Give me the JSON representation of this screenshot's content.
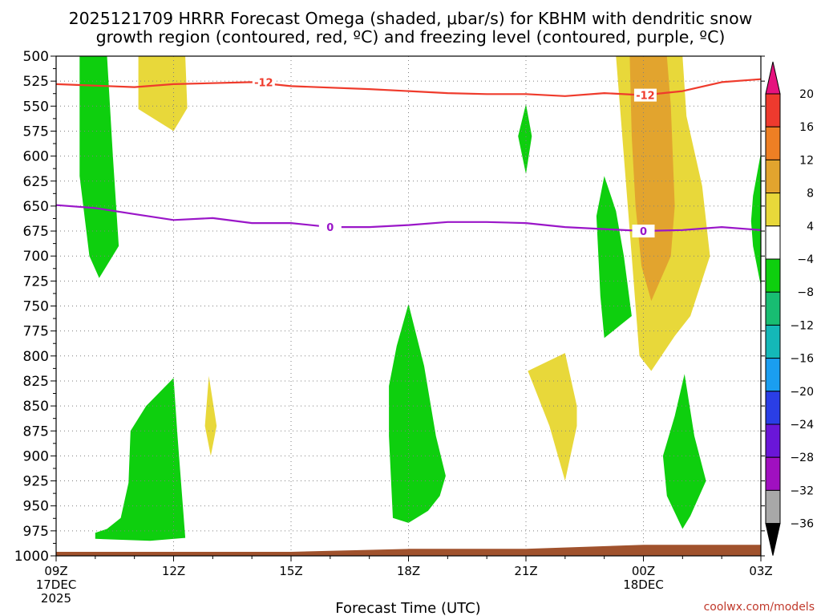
{
  "chart_data": {
    "type": "heatmap",
    "title_line1": "2025121709 HRRR Forecast Omega (shaded, μbar/s) for KBHM with dendritic snow",
    "title_line2": "growth region (contoured, red, ºC) and freezing level (contoured, purple, ºC)",
    "xlabel": "Forecast Time (UTC)",
    "credit": "coolwx.com/models",
    "x_range_hours": [
      0,
      18
    ],
    "y_range_hpa": [
      500,
      1000
    ],
    "x_ticks": [
      {
        "hour": 0,
        "label": "09Z",
        "sub1": "17DEC",
        "sub2": "2025"
      },
      {
        "hour": 3,
        "label": "12Z",
        "sub1": "",
        "sub2": ""
      },
      {
        "hour": 6,
        "label": "15Z",
        "sub1": "",
        "sub2": ""
      },
      {
        "hour": 9,
        "label": "18Z",
        "sub1": "",
        "sub2": ""
      },
      {
        "hour": 12,
        "label": "21Z",
        "sub1": "",
        "sub2": ""
      },
      {
        "hour": 15,
        "label": "00Z",
        "sub1": "18DEC",
        "sub2": ""
      },
      {
        "hour": 18,
        "label": "03Z",
        "sub1": "",
        "sub2": ""
      }
    ],
    "y_ticks": [
      {
        "p": 500,
        "label": "500"
      },
      {
        "p": 525,
        "label": "525"
      },
      {
        "p": 550,
        "label": "550"
      },
      {
        "p": 575,
        "label": "575"
      },
      {
        "p": 600,
        "label": "600"
      },
      {
        "p": 625,
        "label": "625"
      },
      {
        "p": 650,
        "label": "650"
      },
      {
        "p": 675,
        "label": "675"
      },
      {
        "p": 700,
        "label": "700"
      },
      {
        "p": 725,
        "label": "725"
      },
      {
        "p": 750,
        "label": "750"
      },
      {
        "p": 775,
        "label": "775"
      },
      {
        "p": 800,
        "label": "800"
      },
      {
        "p": 825,
        "label": "825"
      },
      {
        "p": 850,
        "label": "850"
      },
      {
        "p": 875,
        "label": "875"
      },
      {
        "p": 900,
        "label": "900"
      },
      {
        "p": 925,
        "label": "925"
      },
      {
        "p": 950,
        "label": "950"
      },
      {
        "p": 975,
        "label": "975"
      },
      {
        "p": 1000,
        "label": "1000"
      }
    ],
    "colorbar": {
      "bins": [
        {
          "from": 20,
          "to": 24,
          "color": "#e6127e"
        },
        {
          "from": 16,
          "to": 20,
          "color": "#ee3a2e"
        },
        {
          "from": 12,
          "to": 16,
          "color": "#ee7f24"
        },
        {
          "from": 8,
          "to": 12,
          "color": "#e2a42e"
        },
        {
          "from": 4,
          "to": 8,
          "color": "#e8d83a"
        },
        {
          "from": -4,
          "to": 4,
          "color": "#ffffff"
        },
        {
          "from": -8,
          "to": -4,
          "color": "#0ecf0e"
        },
        {
          "from": -12,
          "to": -8,
          "color": "#18bd72"
        },
        {
          "from": -16,
          "to": -12,
          "color": "#14b8b8"
        },
        {
          "from": -20,
          "to": -16,
          "color": "#1a9ef0"
        },
        {
          "from": -24,
          "to": -20,
          "color": "#2a3ee6"
        },
        {
          "from": -28,
          "to": -24,
          "color": "#6a16d8"
        },
        {
          "from": -32,
          "to": -28,
          "color": "#a010c0"
        },
        {
          "from": -36,
          "to": -32,
          "color": "#a8a8a8"
        },
        {
          "from": -40,
          "to": -36,
          "color": "#000000"
        }
      ],
      "labels": [
        "20",
        "16",
        "12",
        "8",
        "4",
        "−4",
        "−8",
        "−12",
        "−16",
        "−20",
        "−24",
        "−28",
        "−32",
        "−36"
      ]
    },
    "shaded_regions": [
      {
        "name": "green-plume-left",
        "value": -6,
        "color": "#0ecf0e",
        "points": [
          [
            0.6,
            500
          ],
          [
            1.3,
            500
          ],
          [
            1.45,
            600
          ],
          [
            1.6,
            690
          ],
          [
            1.1,
            722
          ],
          [
            0.85,
            700
          ],
          [
            0.6,
            620
          ]
        ]
      },
      {
        "name": "yellow-top-left",
        "value": 6,
        "color": "#e8d83a",
        "points": [
          [
            2.1,
            500
          ],
          [
            3.3,
            500
          ],
          [
            3.35,
            552
          ],
          [
            3.0,
            575
          ],
          [
            2.1,
            553
          ]
        ]
      },
      {
        "name": "green-bottom-left",
        "value": -6,
        "color": "#0ecf0e",
        "points": [
          [
            3.0,
            822
          ],
          [
            3.1,
            880
          ],
          [
            3.3,
            982
          ],
          [
            2.4,
            985
          ],
          [
            1.0,
            983
          ],
          [
            1.0,
            977
          ],
          [
            1.3,
            973
          ],
          [
            1.65,
            962
          ],
          [
            1.85,
            927
          ],
          [
            1.9,
            875
          ],
          [
            2.3,
            850
          ]
        ]
      },
      {
        "name": "yellow-small-sliver",
        "value": 6,
        "color": "#e8d83a",
        "points": [
          [
            3.9,
            820
          ],
          [
            4.1,
            870
          ],
          [
            3.95,
            900
          ],
          [
            3.8,
            870
          ]
        ]
      },
      {
        "name": "green-center-18z",
        "value": -6,
        "color": "#0ecf0e",
        "points": [
          [
            9.0,
            748
          ],
          [
            9.4,
            810
          ],
          [
            9.7,
            880
          ],
          [
            9.95,
            920
          ],
          [
            9.8,
            940
          ],
          [
            9.5,
            955
          ],
          [
            9.0,
            967
          ],
          [
            8.6,
            962
          ],
          [
            8.5,
            880
          ],
          [
            8.5,
            830
          ],
          [
            8.7,
            790
          ]
        ]
      },
      {
        "name": "green-small-21z",
        "value": -6,
        "color": "#0ecf0e",
        "points": [
          [
            12.0,
            548
          ],
          [
            12.15,
            580
          ],
          [
            12.0,
            618
          ],
          [
            11.8,
            580
          ]
        ]
      },
      {
        "name": "yellow-21z",
        "value": 6,
        "color": "#e8d83a",
        "points": [
          [
            12.05,
            815
          ],
          [
            13.0,
            797
          ],
          [
            13.3,
            850
          ],
          [
            13.3,
            870
          ],
          [
            13.0,
            925
          ],
          [
            12.6,
            870
          ],
          [
            12.2,
            830
          ]
        ]
      },
      {
        "name": "green-right-mid",
        "value": -6,
        "color": "#0ecf0e",
        "points": [
          [
            14.0,
            620
          ],
          [
            14.3,
            655
          ],
          [
            14.5,
            700
          ],
          [
            14.7,
            760
          ],
          [
            14.0,
            782
          ],
          [
            13.9,
            740
          ],
          [
            13.8,
            660
          ]
        ]
      },
      {
        "name": "yellow-big-right",
        "value": 6,
        "color": "#e8d83a",
        "points": [
          [
            14.3,
            500
          ],
          [
            16.0,
            500
          ],
          [
            16.1,
            560
          ],
          [
            16.5,
            630
          ],
          [
            16.7,
            700
          ],
          [
            16.2,
            760
          ],
          [
            15.8,
            780
          ],
          [
            15.2,
            815
          ],
          [
            14.9,
            800
          ],
          [
            14.8,
            750
          ],
          [
            14.7,
            700
          ],
          [
            14.5,
            600
          ],
          [
            14.4,
            550
          ]
        ]
      },
      {
        "name": "orange-core-right",
        "value": 10,
        "color": "#e2a42e",
        "points": [
          [
            14.65,
            500
          ],
          [
            15.6,
            500
          ],
          [
            15.7,
            550
          ],
          [
            15.8,
            650
          ],
          [
            15.7,
            700
          ],
          [
            15.2,
            745
          ],
          [
            14.95,
            710
          ],
          [
            14.8,
            650
          ],
          [
            14.7,
            580
          ]
        ]
      },
      {
        "name": "green-bottom-right",
        "value": -6,
        "color": "#0ecf0e",
        "points": [
          [
            16.05,
            818
          ],
          [
            16.3,
            880
          ],
          [
            16.6,
            925
          ],
          [
            16.2,
            960
          ],
          [
            16.0,
            973
          ],
          [
            15.6,
            940
          ],
          [
            15.5,
            900
          ],
          [
            15.8,
            860
          ]
        ]
      },
      {
        "name": "green-right-edge",
        "value": -6,
        "color": "#0ecf0e",
        "points": [
          [
            18.0,
            597
          ],
          [
            18.0,
            730
          ],
          [
            17.8,
            690
          ],
          [
            17.75,
            665
          ],
          [
            17.8,
            640
          ]
        ]
      }
    ],
    "red_contour": {
      "value": -12,
      "label": "-12",
      "color": "#ef3b2c",
      "points": [
        [
          0,
          528
        ],
        [
          2,
          531
        ],
        [
          3,
          528
        ],
        [
          5,
          526
        ],
        [
          6,
          530
        ],
        [
          8,
          533
        ],
        [
          10,
          537
        ],
        [
          11,
          538
        ],
        [
          12,
          538
        ],
        [
          13,
          540
        ],
        [
          14,
          537
        ],
        [
          15,
          539
        ],
        [
          16,
          535
        ],
        [
          17,
          526
        ],
        [
          18,
          523
        ]
      ],
      "label_positions": [
        [
          5.3,
          526
        ],
        [
          15.05,
          539
        ]
      ]
    },
    "purple_contour": {
      "value": 0,
      "label": "0",
      "color": "#9a16c8",
      "points": [
        [
          0,
          649
        ],
        [
          1,
          652
        ],
        [
          2,
          658
        ],
        [
          3,
          664
        ],
        [
          4,
          662
        ],
        [
          5,
          667
        ],
        [
          6,
          667
        ],
        [
          7,
          671
        ],
        [
          8,
          671
        ],
        [
          9,
          669
        ],
        [
          10,
          666
        ],
        [
          11,
          666
        ],
        [
          12,
          667
        ],
        [
          13,
          671
        ],
        [
          14,
          673
        ],
        [
          15,
          675
        ],
        [
          16,
          674
        ],
        [
          17,
          671
        ],
        [
          18,
          674
        ]
      ],
      "label_positions": [
        [
          7.0,
          671
        ],
        [
          15.0,
          675
        ]
      ]
    },
    "terrain": {
      "color": "#a0522d",
      "points": [
        [
          0,
          996
        ],
        [
          6,
          996
        ],
        [
          9,
          993
        ],
        [
          12,
          993
        ],
        [
          15,
          989
        ],
        [
          18,
          989
        ]
      ]
    }
  }
}
